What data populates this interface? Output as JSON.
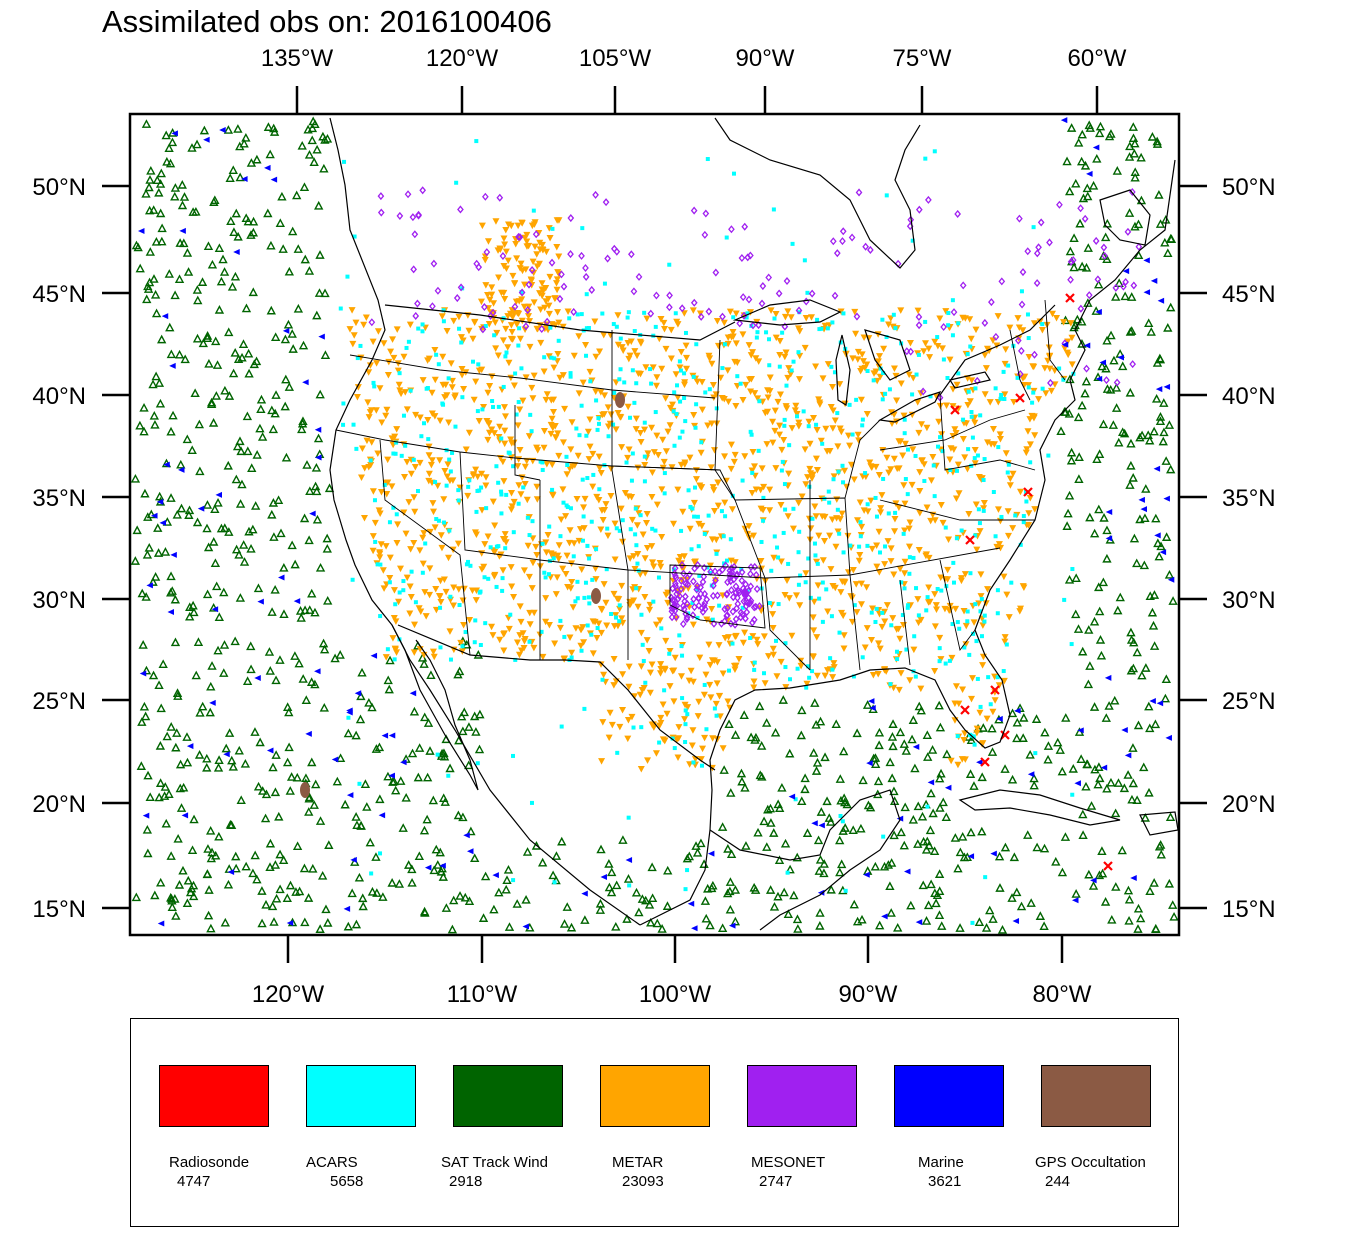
{
  "title": "Assimilated obs on: 2016100406",
  "axes": {
    "top": [
      "135°W",
      "120°W",
      "105°W",
      "90°W",
      "75°W",
      "60°W"
    ],
    "bottom": [
      "120°W",
      "110°W",
      "100°W",
      "90°W",
      "80°W"
    ],
    "left": [
      "50°N",
      "45°N",
      "40°N",
      "35°N",
      "30°N",
      "25°N",
      "20°N",
      "15°N"
    ],
    "right": [
      "50°N",
      "45°N",
      "40°N",
      "35°N",
      "30°N",
      "25°N",
      "20°N",
      "15°N"
    ]
  },
  "map_extent": {
    "lon": [
      -128,
      -74
    ],
    "lat": [
      13.5,
      53.5
    ]
  },
  "legend": [
    {
      "label": "Radiosonde",
      "count": "4747",
      "color": "#ff0000",
      "marker": "x"
    },
    {
      "label": "ACARS",
      "count": "5658",
      "color": "#00ffff",
      "marker": "square"
    },
    {
      "label": "SAT Track Wind",
      "count": "2918",
      "color": "#006400",
      "marker": "triangle-up"
    },
    {
      "label": "METAR",
      "count": "23093",
      "color": "#ffa500",
      "marker": "triangle-down"
    },
    {
      "label": "MESONET",
      "count": "2747",
      "color": "#a020f0",
      "marker": "diamond"
    },
    {
      "label": "Marine",
      "count": "3621",
      "color": "#0000ff",
      "marker": "triangle-left"
    },
    {
      "label": "GPS Occultation",
      "count": "244",
      "color": "#8b5a44",
      "marker": "blob"
    }
  ]
}
